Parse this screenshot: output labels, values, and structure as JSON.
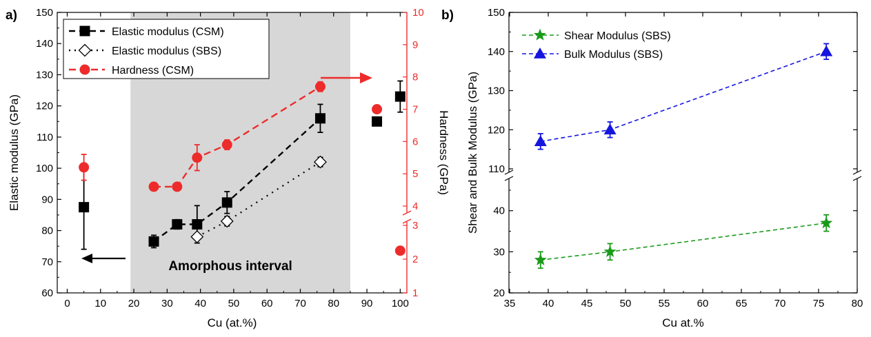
{
  "chart_data": [
    {
      "panel_label": "a)",
      "type": "scatter",
      "xlabel": "Cu (at.%)",
      "ylabel": "Elastic modulus (GPa)",
      "y2label": "Hardness (GPa)",
      "xlim": [
        -3,
        102
      ],
      "ylim": [
        60,
        150
      ],
      "y2lim_upper": [
        4,
        10
      ],
      "y2lim_lower": [
        1,
        3
      ],
      "x_ticks": [
        "0",
        "10",
        "20",
        "30",
        "40",
        "50",
        "60",
        "70",
        "80",
        "90",
        "100"
      ],
      "y_ticks": [
        "60",
        "70",
        "80",
        "90",
        "100",
        "110",
        "120",
        "130",
        "140",
        "150"
      ],
      "y2_ticks": [
        "1",
        "2",
        "3",
        "4",
        "5",
        "6",
        "7",
        "8",
        "9",
        "10"
      ],
      "annotation": "Amorphous interval",
      "shaded_interval": [
        19,
        85
      ],
      "legend_position": "top-left",
      "colors": {
        "black": "#000000",
        "red": "#ee2b2b",
        "shade": "#d7d7d7"
      },
      "series": [
        {
          "name": "Elastic modulus (CSM)",
          "axis": "left",
          "marker": "square",
          "points": [
            {
              "x": 5,
              "y": 87.5,
              "err": 13.5
            },
            {
              "x": 26,
              "y": 76.5,
              "err": 2
            },
            {
              "x": 33,
              "y": 82,
              "err": 1.5
            },
            {
              "x": 39,
              "y": 82,
              "err": 6
            },
            {
              "x": 48,
              "y": 89,
              "err": 3.5
            },
            {
              "x": 76,
              "y": 116,
              "err": 4.5
            },
            {
              "x": 93,
              "y": 115,
              "err": 1
            },
            {
              "x": 100,
              "y": 123,
              "err": 5
            }
          ],
          "line_indices": [
            1,
            5
          ]
        },
        {
          "name": "Elastic modulus (SBS)",
          "axis": "left",
          "marker": "diamond",
          "points": [
            {
              "x": 39,
              "y": 78,
              "err": 1
            },
            {
              "x": 48,
              "y": 83,
              "err": 1.5
            },
            {
              "x": 76,
              "y": 102,
              "err": 1.5
            }
          ]
        },
        {
          "name": "Hardness (CSM)",
          "axis": "right",
          "marker": "circle",
          "points": [
            {
              "x": 5,
              "y": 5.2,
              "err": 0.4
            },
            {
              "x": 26,
              "y": 4.6,
              "err": 0
            },
            {
              "x": 33,
              "y": 4.6,
              "err": 0
            },
            {
              "x": 39,
              "y": 5.5,
              "err": 0.4
            },
            {
              "x": 48,
              "y": 5.9,
              "err": 0.15
            },
            {
              "x": 76,
              "y": 7.7,
              "err": 0.15
            },
            {
              "x": 93,
              "y": 7.0,
              "err": 0.05
            },
            {
              "x": 100,
              "y": 2.25,
              "err": 0
            }
          ],
          "line_indices": [
            1,
            5
          ]
        }
      ]
    },
    {
      "panel_label": "b)",
      "type": "scatter",
      "xlabel": "Cu at.%",
      "ylabel": "Shear and Bulk Modulus (GPa)",
      "xlim": [
        35,
        80
      ],
      "ylim_upper": [
        110,
        150
      ],
      "ylim_lower": [
        20,
        47
      ],
      "x_ticks": [
        "35",
        "40",
        "45",
        "50",
        "55",
        "60",
        "65",
        "70",
        "75",
        "80"
      ],
      "y_ticks_upper": [
        "110",
        "120",
        "130",
        "140",
        "150"
      ],
      "y_ticks_lower": [
        "20",
        "30",
        "40"
      ],
      "legend_position": "top-left",
      "colors": {
        "green": "#1a9a1a",
        "blue": "#1515e0"
      },
      "series": [
        {
          "name": "Shear Modulus (SBS)",
          "marker": "star",
          "points": [
            {
              "x": 39,
              "y": 28,
              "err": 2
            },
            {
              "x": 48,
              "y": 30,
              "err": 2
            },
            {
              "x": 76,
              "y": 37,
              "err": 2
            }
          ]
        },
        {
          "name": "Bulk Modulus (SBS)",
          "marker": "triangle",
          "points": [
            {
              "x": 39,
              "y": 117,
              "err": 2
            },
            {
              "x": 48,
              "y": 120,
              "err": 2
            },
            {
              "x": 76,
              "y": 140,
              "err": 2
            }
          ]
        }
      ]
    }
  ]
}
